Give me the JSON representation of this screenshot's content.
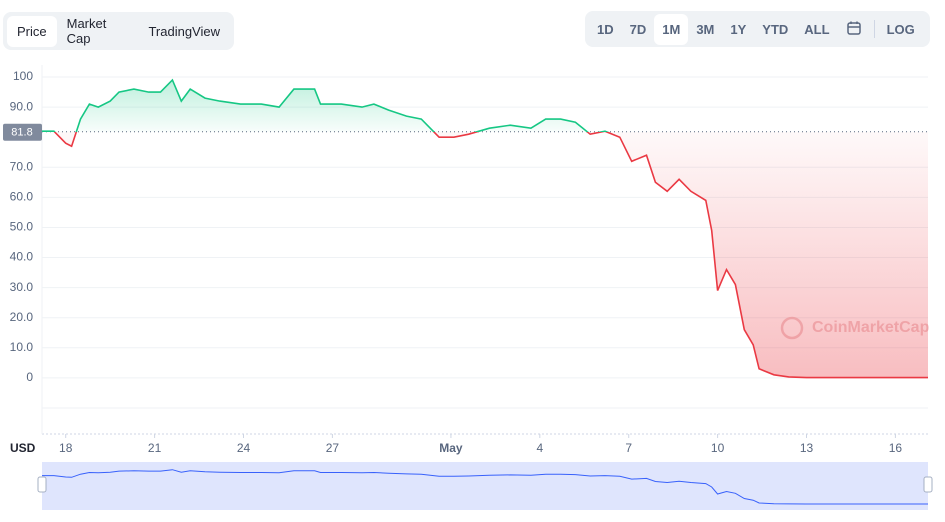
{
  "tabs": [
    "Price",
    "Market Cap",
    "TradingView"
  ],
  "ranges": [
    "1D",
    "7D",
    "1M",
    "3M",
    "1Y",
    "YTD",
    "ALL"
  ],
  "log_label": "LOG",
  "watermark": "CoinMarketCap",
  "chart_data": {
    "type": "line",
    "currency": "USD",
    "reference_value": 81.8,
    "up_color": "#16c784",
    "down_color": "#ea3943",
    "navigator_color": "#3861fb",
    "x": [
      17.2,
      17.6,
      18.0,
      18.2,
      18.5,
      18.8,
      19.1,
      19.5,
      19.8,
      20.3,
      20.8,
      21.2,
      21.6,
      21.9,
      22.2,
      22.7,
      23.2,
      23.9,
      24.6,
      25.2,
      25.7,
      26.4,
      26.6,
      27.3,
      28.0,
      28.4,
      28.9,
      29.5,
      30.0,
      30.6,
      31.1,
      31.6,
      32.3,
      33.0,
      33.7,
      34.2,
      34.7,
      35.2,
      35.7,
      36.2,
      36.7,
      37.1,
      37.6,
      37.9,
      38.3,
      38.7,
      39.1,
      39.6,
      39.8,
      40.0,
      40.3,
      40.6,
      40.9,
      41.2,
      41.4,
      41.9,
      42.4,
      43.0,
      44.5,
      47.1
    ],
    "values": [
      82,
      82,
      78,
      77,
      86,
      91,
      90,
      92,
      95,
      96,
      95,
      95,
      99,
      92,
      96,
      93,
      92,
      91,
      91,
      90,
      96,
      96,
      91,
      91,
      90,
      91,
      89,
      87,
      86,
      80,
      80,
      81,
      83,
      84,
      83,
      86,
      86,
      85,
      81,
      82,
      80,
      72,
      74,
      65,
      62,
      66,
      62,
      59,
      49,
      29,
      36,
      31,
      16,
      11,
      3,
      1,
      0.3,
      0.1,
      0.1,
      0.1
    ],
    "xlim": [
      17.2,
      47.1
    ],
    "ylim": [
      -18,
      104
    ],
    "xticks": [
      18,
      21,
      24,
      27,
      {
        "value": 31,
        "label": "May"
      },
      {
        "value": 34,
        "label": "4"
      },
      {
        "value": 37,
        "label": "7"
      },
      {
        "value": 40,
        "label": "10"
      },
      {
        "value": 43,
        "label": "13"
      },
      {
        "value": 46,
        "label": "16"
      }
    ],
    "yticks": [
      0,
      {
        "value": 10,
        "label": "10.0"
      },
      {
        "value": 20,
        "label": "20.0"
      },
      {
        "value": 30,
        "label": "30.0"
      },
      {
        "value": 40,
        "label": "40.0"
      },
      {
        "value": 50,
        "label": "50.0"
      },
      {
        "value": 60,
        "label": "60.0"
      },
      {
        "value": 70,
        "label": "70.0"
      },
      {
        "value": 90,
        "label": "90.0"
      },
      100
    ],
    "grid": true
  }
}
